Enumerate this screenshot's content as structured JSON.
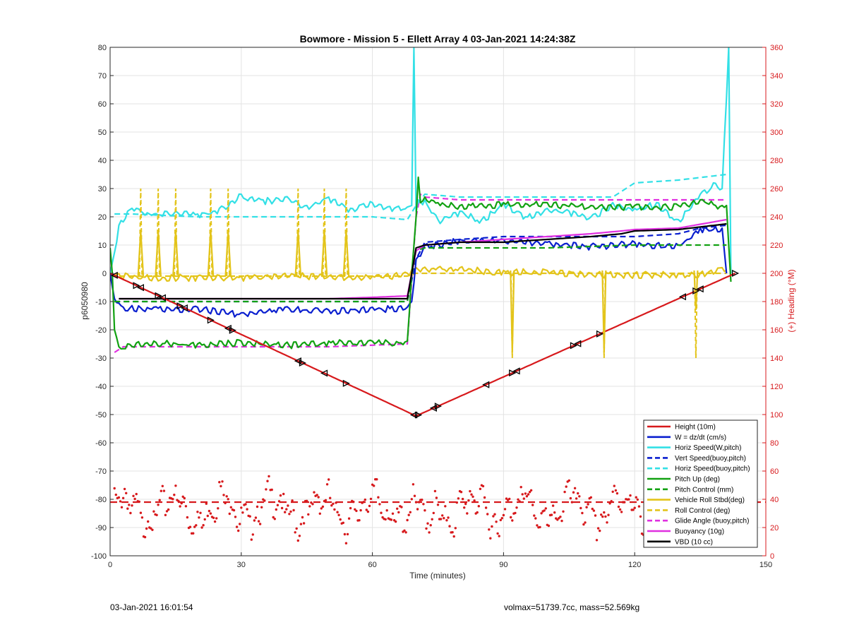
{
  "figure": {
    "footer_left": "03-Jan-2021 16:01:54",
    "footer_right": "volmax=51739.7cc, mass=52.569kg"
  },
  "chart_data": {
    "type": "line",
    "title": "Bowmore - Mission 5 - Ellett Array 4 03-Jan-2021 14:24:38Z",
    "xlabel": "Time (minutes)",
    "ylabel_left": "p6050980",
    "ylabel_right": "(+) Heading (°M)",
    "xlim": [
      0,
      150
    ],
    "ylim_left": [
      -100,
      80
    ],
    "ylim_right": [
      0,
      360
    ],
    "xticks": [
      0,
      30,
      60,
      90,
      120,
      150
    ],
    "yticks_left": [
      -100,
      -90,
      -80,
      -70,
      -60,
      -50,
      -40,
      -30,
      -20,
      -10,
      0,
      10,
      20,
      30,
      40,
      50,
      60,
      70,
      80
    ],
    "yticks_right": [
      0,
      20,
      40,
      60,
      80,
      100,
      120,
      140,
      160,
      180,
      200,
      220,
      240,
      260,
      280,
      300,
      320,
      340,
      360
    ],
    "grid": true,
    "legend_position": "bottom-right",
    "colors": {
      "red": "#d7191c",
      "blue": "#0a1fcf",
      "cyan": "#33e0e6",
      "green": "#12a112",
      "yellow": "#e3c41a",
      "magenta": "#e030e0",
      "black": "#000000",
      "right_axis": "#d7191c"
    },
    "series": [
      {
        "name": "Height (10m)",
        "color": "#d7191c",
        "style": "solid",
        "x": [
          0,
          70,
          143
        ],
        "y": [
          0,
          -50.5,
          0
        ]
      },
      {
        "name": "W = dz/dt (cm/s)",
        "color": "#0a1fcf",
        "style": "solid",
        "x": [
          0,
          1,
          3,
          10,
          20,
          30,
          40,
          50,
          60,
          68,
          69,
          70,
          72,
          80,
          90,
          100,
          110,
          120,
          130,
          135,
          140,
          141
        ],
        "y": [
          0,
          -9,
          -12,
          -12,
          -12,
          -14,
          -12,
          -13,
          -12,
          -12,
          -10,
          5,
          10,
          12,
          12,
          11,
          10,
          11,
          10,
          16,
          16,
          0
        ]
      },
      {
        "name": "Horiz Speed(W,pitch)",
        "color": "#33e0e6",
        "style": "solid",
        "x": [
          0,
          2,
          4,
          6,
          10,
          15,
          20,
          25,
          30,
          35,
          40,
          45,
          50,
          55,
          60,
          65,
          69,
          69.5,
          70,
          70.5,
          72,
          75,
          80,
          85,
          90,
          95,
          100,
          105,
          110,
          115,
          120,
          125,
          130,
          135,
          138,
          140,
          141.5,
          142
        ],
        "y": [
          0,
          17,
          22,
          23,
          21,
          22,
          21,
          23,
          28,
          26,
          27,
          24,
          27,
          23,
          25,
          23,
          24,
          80,
          22,
          26,
          26,
          19,
          22,
          19,
          25,
          20,
          23,
          22,
          20,
          25,
          23,
          25,
          19,
          28,
          32,
          30,
          80,
          0
        ]
      },
      {
        "name": "Vert Speed(buoy,pitch)",
        "color": "#0a1fcf",
        "style": "dashed",
        "x": [
          1,
          10,
          30,
          50,
          68,
          70,
          72,
          80,
          90,
          100,
          110,
          120,
          130,
          135,
          141
        ],
        "y": [
          -10,
          -10,
          -10,
          -10,
          -10,
          5,
          11,
          12,
          13,
          13,
          13,
          13,
          14,
          16,
          17
        ]
      },
      {
        "name": "Horiz Speed(buoy,pitch)",
        "color": "#33e0e6",
        "style": "dashed",
        "x": [
          1,
          5,
          20,
          40,
          60,
          68,
          70,
          72,
          80,
          100,
          115,
          120,
          130,
          141
        ],
        "y": [
          21,
          21,
          20,
          20,
          20,
          19,
          24,
          28,
          27,
          27,
          27,
          32,
          33,
          35
        ]
      },
      {
        "name": "Pitch Up (deg)",
        "color": "#12a112",
        "style": "solid",
        "x": [
          0,
          0.5,
          1,
          2,
          4,
          10,
          20,
          30,
          40,
          50,
          60,
          68,
          69,
          70,
          70.5,
          71,
          72,
          75,
          80,
          90,
          100,
          110,
          120,
          130,
          135,
          140,
          141,
          142
        ],
        "y": [
          9,
          0,
          -20,
          -26,
          -25,
          -24,
          -25,
          -24,
          -25,
          -24,
          -24,
          -24,
          0,
          20,
          34,
          25,
          27,
          25,
          24,
          25,
          25,
          24,
          24,
          24,
          26,
          24,
          24,
          -3
        ]
      },
      {
        "name": "Pitch Control (mm)",
        "color": "#12a112",
        "style": "dashed",
        "x": [
          1,
          10,
          30,
          50,
          68,
          70,
          72,
          80,
          100,
          120,
          135,
          141
        ],
        "y": [
          -10,
          -10,
          -10,
          -10,
          -10,
          8,
          9,
          9,
          9,
          10,
          10,
          10
        ]
      },
      {
        "name": "Vehicle Roll Stbd(deg)",
        "color": "#e3c41a",
        "style": "solid",
        "x": [
          0,
          10,
          20,
          30,
          40,
          50,
          60,
          68,
          70,
          75,
          80,
          90,
          100,
          110,
          120,
          130,
          135,
          140,
          141
        ],
        "y": [
          0,
          -1,
          -1,
          -1,
          0,
          -1,
          -1,
          0,
          2,
          2,
          2,
          1,
          1,
          0,
          0,
          0,
          0,
          2,
          1
        ]
      },
      {
        "name": "Roll Control (deg)",
        "color": "#e3c41a",
        "style": "dashed",
        "x": [
          0,
          10,
          20,
          30,
          40,
          50,
          60,
          68,
          70,
          80,
          100,
          120,
          141
        ],
        "y": [
          -1,
          -1,
          -1,
          -1,
          -1,
          -1,
          -1,
          -1,
          0,
          0,
          0,
          0,
          0
        ]
      },
      {
        "name": "Glide Angle (buoy,pitch)",
        "color": "#e030e0",
        "style": "dashed",
        "x": [
          1,
          3,
          10,
          30,
          50,
          68,
          70,
          71,
          72,
          80,
          100,
          120,
          141
        ],
        "y": [
          -28,
          -26,
          -26,
          -26,
          -26,
          -25,
          20,
          28,
          27,
          26,
          26,
          26,
          26
        ]
      },
      {
        "name": "Buoyancy (10g)",
        "color": "#e030e0",
        "style": "solid",
        "x": [
          2,
          10,
          20,
          30,
          40,
          50,
          60,
          68,
          69,
          70,
          72,
          80,
          90,
          100,
          110,
          117,
          120,
          130,
          141
        ],
        "y": [
          -9,
          -9,
          -9,
          -9,
          -9,
          -9,
          -8.5,
          -8,
          0,
          8,
          10,
          11,
          12,
          13,
          14,
          15,
          15.5,
          16,
          19
        ]
      },
      {
        "name": "VBD (10 cc)",
        "color": "#000000",
        "style": "solid",
        "x": [
          2,
          10,
          20,
          30,
          40,
          50,
          60,
          68,
          69,
          70,
          72,
          80,
          90,
          100,
          110,
          117,
          120,
          130,
          141
        ],
        "y": [
          -9,
          -9,
          -9,
          -9,
          -9,
          -9,
          -9,
          -9,
          0,
          9,
          10,
          11,
          11,
          12,
          13,
          14,
          15,
          15.5,
          17.5
        ]
      }
    ],
    "heading_series": {
      "color": "#d7191c",
      "style": "dotted",
      "axis": "right",
      "mean_deg": 38
    },
    "legend": [
      {
        "label": "Height (10m)",
        "color": "#d7191c",
        "style": "solid"
      },
      {
        "label": "W = dz/dt (cm/s)",
        "color": "#0a1fcf",
        "style": "solid"
      },
      {
        "label": "Horiz Speed(W,pitch)",
        "color": "#33e0e6",
        "style": "solid"
      },
      {
        "label": "Vert Speed(buoy,pitch)",
        "color": "#0a1fcf",
        "style": "dashed"
      },
      {
        "label": "Horiz Speed(buoy,pitch)",
        "color": "#33e0e6",
        "style": "dashed"
      },
      {
        "label": "Pitch Up (deg)",
        "color": "#12a112",
        "style": "solid"
      },
      {
        "label": "Pitch Control (mm)",
        "color": "#12a112",
        "style": "dashed"
      },
      {
        "label": "Vehicle Roll Stbd(deg)",
        "color": "#e3c41a",
        "style": "solid"
      },
      {
        "label": "Roll Control (deg)",
        "color": "#e3c41a",
        "style": "dashed"
      },
      {
        "label": "Glide Angle (buoy,pitch)",
        "color": "#e030e0",
        "style": "dashed"
      },
      {
        "label": "Buoyancy (10g)",
        "color": "#e030e0",
        "style": "solid"
      },
      {
        "label": "VBD (10 cc)",
        "color": "#000000",
        "style": "solid"
      }
    ]
  }
}
